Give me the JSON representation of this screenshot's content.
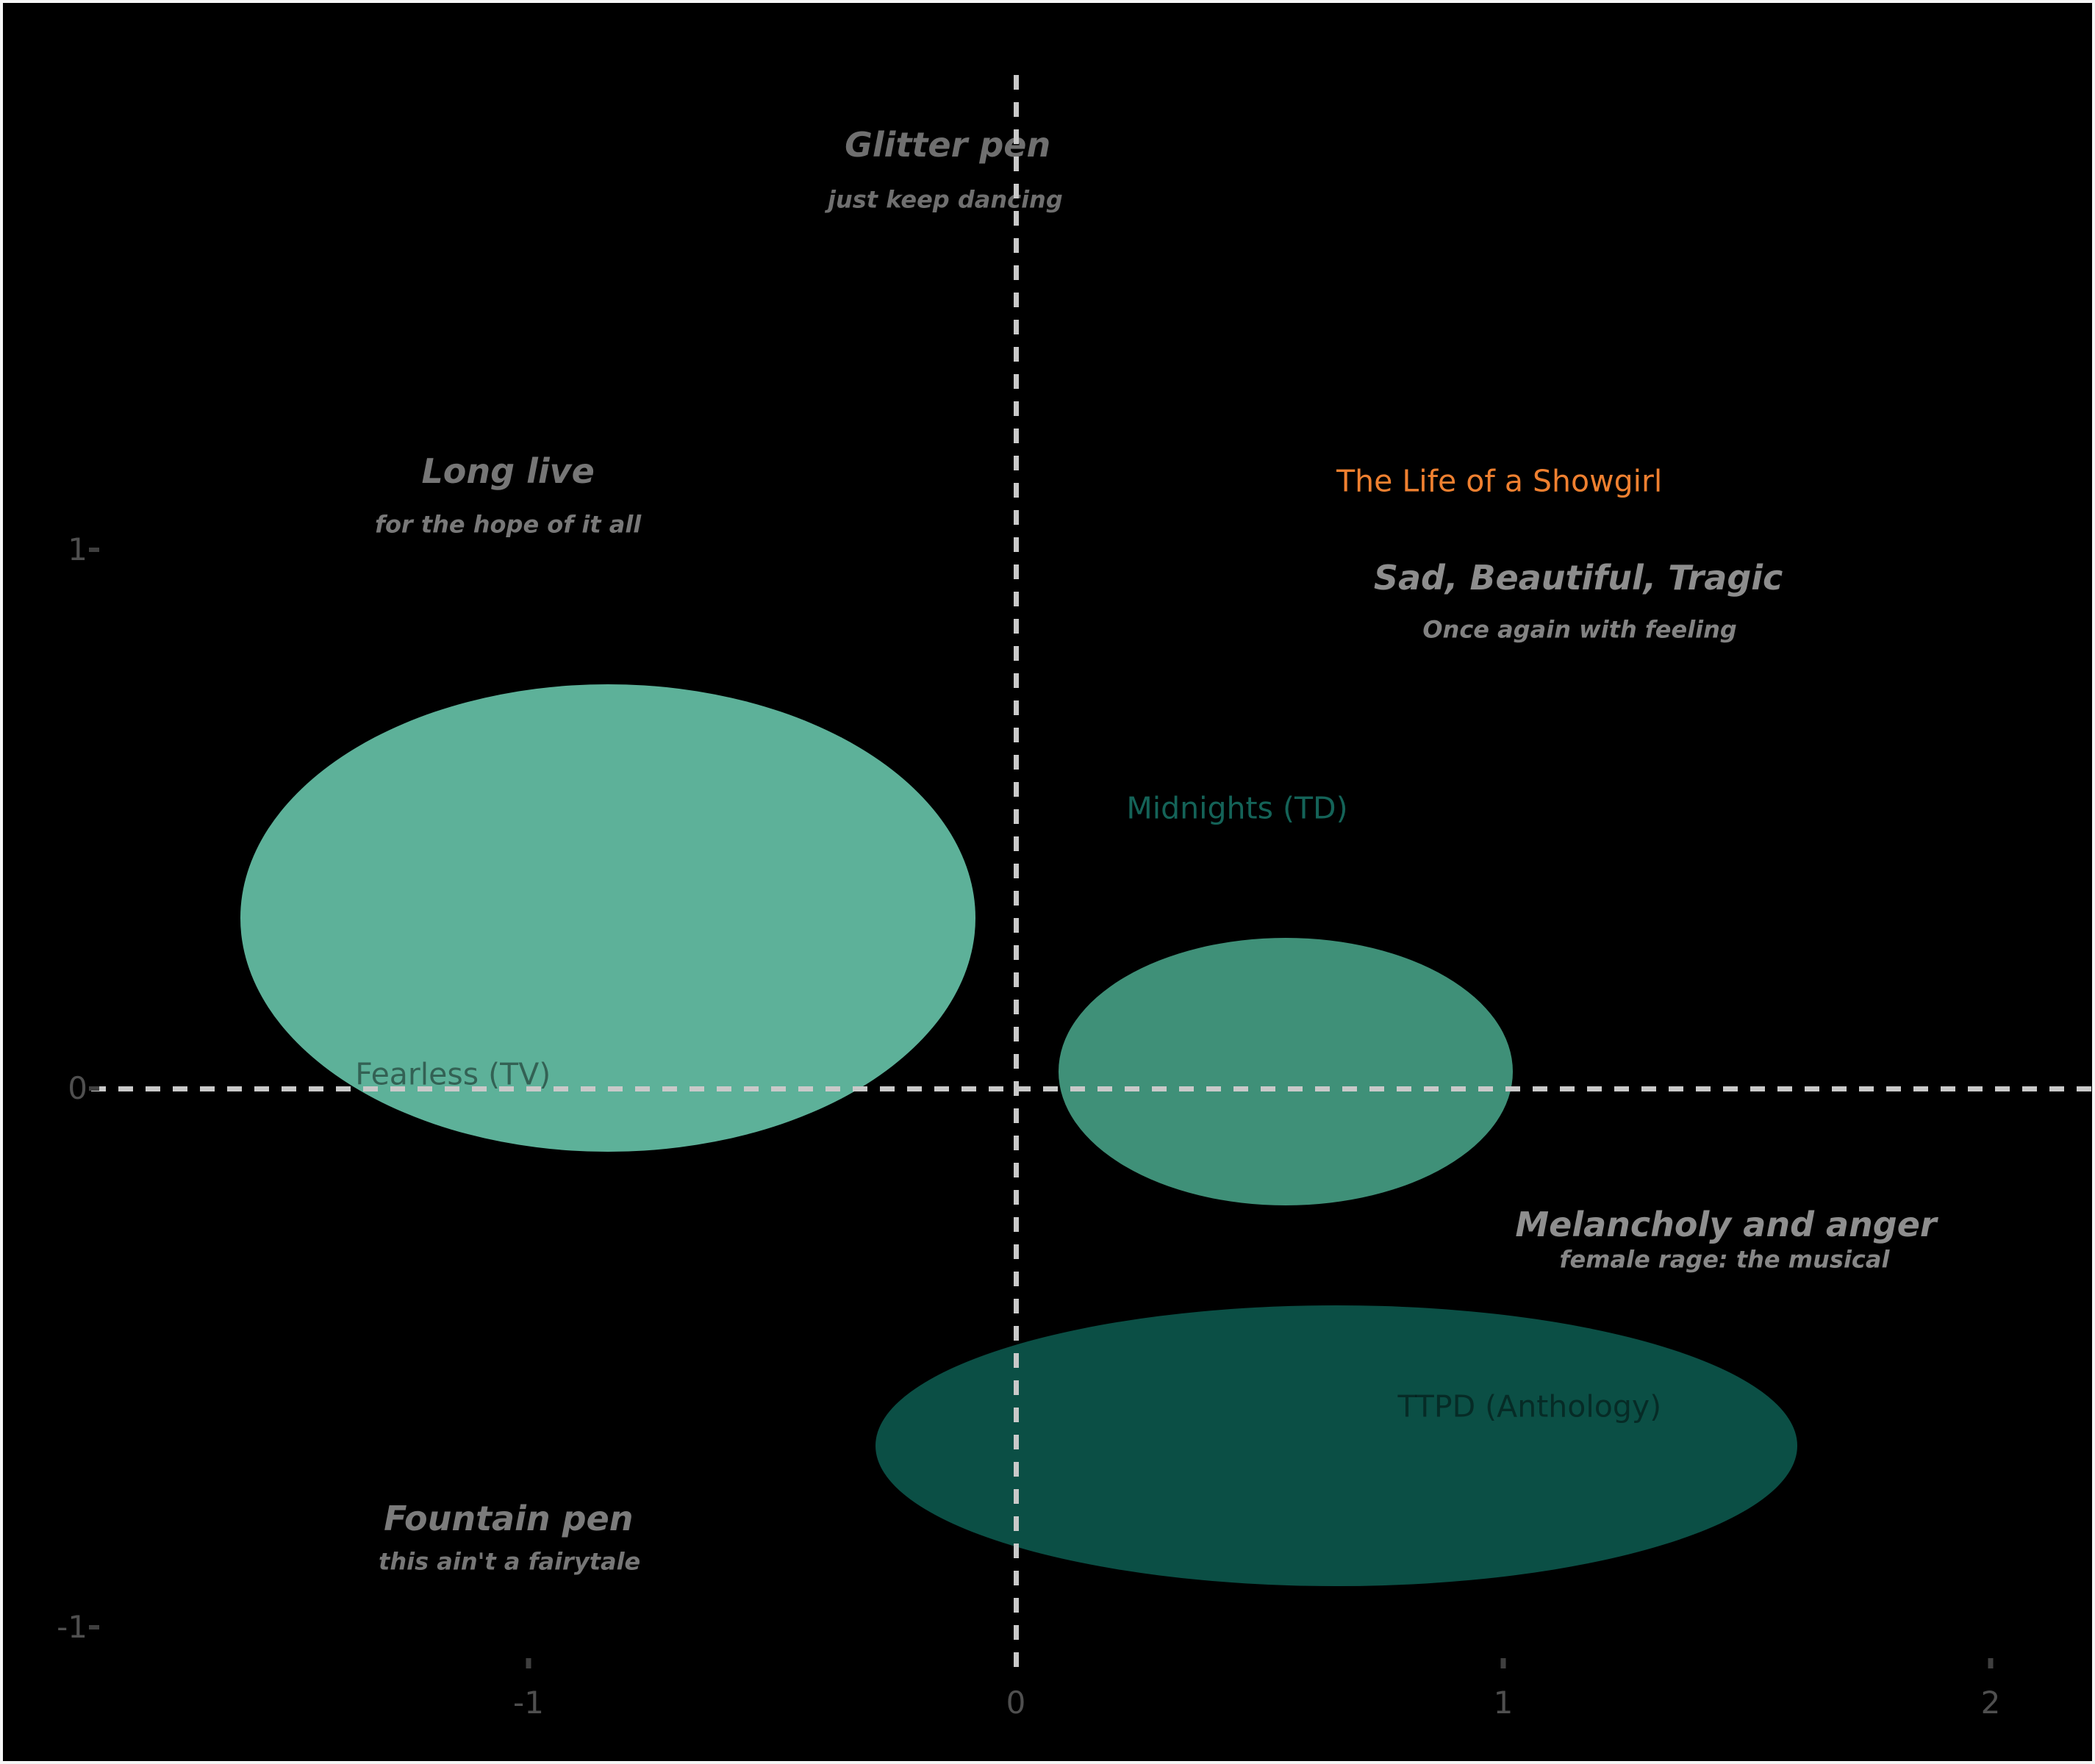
{
  "chart_data": {
    "type": "scatter",
    "title": "",
    "xlabel": "",
    "ylabel": "",
    "background": "#000000",
    "frame_color": "#f5f5f5",
    "zero_line_color": "#c9c9c9",
    "zero_line_style": "dashed",
    "tick_color": "#3f3f3f",
    "tick_label_color": "#4f4f4f",
    "grid": false,
    "legend": "none",
    "xlim": [
      -2.08,
      2.22
    ],
    "ylim": [
      -1.26,
      2.01
    ],
    "x_ticks": [
      {
        "label": "-1",
        "value": -1
      },
      {
        "label": "0",
        "value": 0
      },
      {
        "label": "1",
        "value": 1
      },
      {
        "label": "2",
        "value": 2
      }
    ],
    "y_ticks": [
      {
        "label": "-1",
        "value": -1
      },
      {
        "label": "0",
        "value": 0
      },
      {
        "label": "1",
        "value": 1
      }
    ],
    "quadrant_labels": [
      {
        "title": "Glitter pen",
        "subtitle": "just keep dancing",
        "title_x": -0.14,
        "title_y": 1.75,
        "subtitle_x": -0.145,
        "subtitle_y": 1.65,
        "title_color": "#6f6f6f",
        "subtitle_color": "#6f6f6f"
      },
      {
        "title": "Long live",
        "subtitle": "for the hope of it all",
        "title_x": -1.042,
        "title_y": 1.145,
        "subtitle_x": -1.042,
        "subtitle_y": 1.046,
        "title_color": "#767676",
        "subtitle_color": "#787878"
      },
      {
        "title": "Sad, Beautiful, Tragic",
        "subtitle": "Once again with feeling",
        "title_x": 1.154,
        "title_y": 0.947,
        "subtitle_x": 1.157,
        "subtitle_y": 0.851,
        "title_color": "#8d8d8d",
        "subtitle_color": "#828282"
      },
      {
        "title": "Melancholy and anger",
        "subtitle": "female rage: the musical",
        "title_x": 1.457,
        "title_y": -0.254,
        "subtitle_x": 1.454,
        "subtitle_y": -0.318,
        "title_color": "#8e8e8e",
        "subtitle_color": "#868686"
      },
      {
        "title": "Fountain pen",
        "subtitle": "this ain't a fairytale",
        "title_x": -1.041,
        "title_y": -0.8,
        "subtitle_x": -1.039,
        "subtitle_y": -0.879,
        "title_color": "#7b7b7b",
        "subtitle_color": "#767676"
      }
    ],
    "point_labels": [
      {
        "text": "The Life of a Showgirl",
        "x": 0.992,
        "y": 1.126,
        "color": "#ef8030"
      },
      {
        "text": "Midnights (TD)",
        "x": 0.454,
        "y": 0.518,
        "color": "#146358"
      },
      {
        "text": "Fearless (TV)",
        "x": -1.155,
        "y": 0.025,
        "color": "rgba(0,0,0,0.45)"
      },
      {
        "text": "TTPD (Anthology)",
        "x": 1.054,
        "y": -0.592,
        "color": "rgba(0,0,0,0.45)"
      }
    ],
    "ellipses": [
      {
        "cx": -0.837,
        "cy": 0.317,
        "rx": 0.754,
        "ry": 0.434,
        "color": "#5db199"
      },
      {
        "cx": 0.554,
        "cy": 0.031,
        "rx": 0.466,
        "ry": 0.248,
        "color": "#3f9078"
      },
      {
        "cx": 0.658,
        "cy": -0.663,
        "rx": 0.946,
        "ry": 0.261,
        "color": "#0b4f45"
      }
    ]
  }
}
